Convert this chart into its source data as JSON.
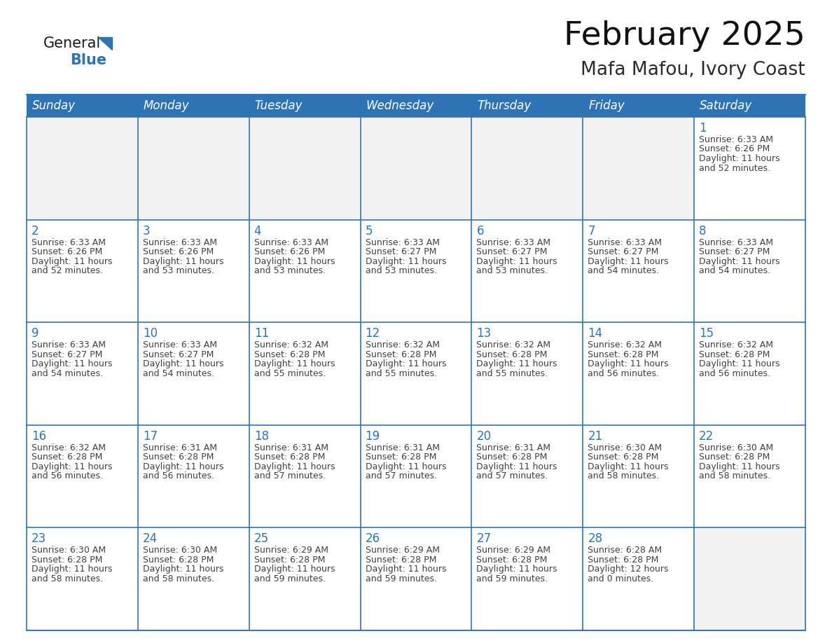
{
  "title": "February 2025",
  "subtitle": "Mafa Mafou, Ivory Coast",
  "header_bg_color": "#2E74B5",
  "header_text_color": "#FFFFFF",
  "cell_border_color": "#2E74B5",
  "day_number_color": "#2E74B5",
  "info_text_color": "#404040",
  "background_color": "#FFFFFF",
  "empty_cell_color": "#F2F2F2",
  "days_of_week": [
    "Sunday",
    "Monday",
    "Tuesday",
    "Wednesday",
    "Thursday",
    "Friday",
    "Saturday"
  ],
  "calendar_data": [
    [
      null,
      null,
      null,
      null,
      null,
      null,
      {
        "day": 1,
        "sunrise": "6:33 AM",
        "sunset": "6:26 PM",
        "daylight": "11 hours and 52 minutes."
      }
    ],
    [
      {
        "day": 2,
        "sunrise": "6:33 AM",
        "sunset": "6:26 PM",
        "daylight": "11 hours and 52 minutes."
      },
      {
        "day": 3,
        "sunrise": "6:33 AM",
        "sunset": "6:26 PM",
        "daylight": "11 hours and 53 minutes."
      },
      {
        "day": 4,
        "sunrise": "6:33 AM",
        "sunset": "6:26 PM",
        "daylight": "11 hours and 53 minutes."
      },
      {
        "day": 5,
        "sunrise": "6:33 AM",
        "sunset": "6:27 PM",
        "daylight": "11 hours and 53 minutes."
      },
      {
        "day": 6,
        "sunrise": "6:33 AM",
        "sunset": "6:27 PM",
        "daylight": "11 hours and 53 minutes."
      },
      {
        "day": 7,
        "sunrise": "6:33 AM",
        "sunset": "6:27 PM",
        "daylight": "11 hours and 54 minutes."
      },
      {
        "day": 8,
        "sunrise": "6:33 AM",
        "sunset": "6:27 PM",
        "daylight": "11 hours and 54 minutes."
      }
    ],
    [
      {
        "day": 9,
        "sunrise": "6:33 AM",
        "sunset": "6:27 PM",
        "daylight": "11 hours and 54 minutes."
      },
      {
        "day": 10,
        "sunrise": "6:33 AM",
        "sunset": "6:27 PM",
        "daylight": "11 hours and 54 minutes."
      },
      {
        "day": 11,
        "sunrise": "6:32 AM",
        "sunset": "6:28 PM",
        "daylight": "11 hours and 55 minutes."
      },
      {
        "day": 12,
        "sunrise": "6:32 AM",
        "sunset": "6:28 PM",
        "daylight": "11 hours and 55 minutes."
      },
      {
        "day": 13,
        "sunrise": "6:32 AM",
        "sunset": "6:28 PM",
        "daylight": "11 hours and 55 minutes."
      },
      {
        "day": 14,
        "sunrise": "6:32 AM",
        "sunset": "6:28 PM",
        "daylight": "11 hours and 56 minutes."
      },
      {
        "day": 15,
        "sunrise": "6:32 AM",
        "sunset": "6:28 PM",
        "daylight": "11 hours and 56 minutes."
      }
    ],
    [
      {
        "day": 16,
        "sunrise": "6:32 AM",
        "sunset": "6:28 PM",
        "daylight": "11 hours and 56 minutes."
      },
      {
        "day": 17,
        "sunrise": "6:31 AM",
        "sunset": "6:28 PM",
        "daylight": "11 hours and 56 minutes."
      },
      {
        "day": 18,
        "sunrise": "6:31 AM",
        "sunset": "6:28 PM",
        "daylight": "11 hours and 57 minutes."
      },
      {
        "day": 19,
        "sunrise": "6:31 AM",
        "sunset": "6:28 PM",
        "daylight": "11 hours and 57 minutes."
      },
      {
        "day": 20,
        "sunrise": "6:31 AM",
        "sunset": "6:28 PM",
        "daylight": "11 hours and 57 minutes."
      },
      {
        "day": 21,
        "sunrise": "6:30 AM",
        "sunset": "6:28 PM",
        "daylight": "11 hours and 58 minutes."
      },
      {
        "day": 22,
        "sunrise": "6:30 AM",
        "sunset": "6:28 PM",
        "daylight": "11 hours and 58 minutes."
      }
    ],
    [
      {
        "day": 23,
        "sunrise": "6:30 AM",
        "sunset": "6:28 PM",
        "daylight": "11 hours and 58 minutes."
      },
      {
        "day": 24,
        "sunrise": "6:30 AM",
        "sunset": "6:28 PM",
        "daylight": "11 hours and 58 minutes."
      },
      {
        "day": 25,
        "sunrise": "6:29 AM",
        "sunset": "6:28 PM",
        "daylight": "11 hours and 59 minutes."
      },
      {
        "day": 26,
        "sunrise": "6:29 AM",
        "sunset": "6:28 PM",
        "daylight": "11 hours and 59 minutes."
      },
      {
        "day": 27,
        "sunrise": "6:29 AM",
        "sunset": "6:28 PM",
        "daylight": "11 hours and 59 minutes."
      },
      {
        "day": 28,
        "sunrise": "6:28 AM",
        "sunset": "6:28 PM",
        "daylight": "12 hours and 0 minutes."
      },
      null
    ]
  ],
  "title_fontsize": 34,
  "subtitle_fontsize": 19,
  "day_header_fontsize": 12,
  "day_number_fontsize": 12,
  "info_fontsize": 9,
  "logo_text1": "General",
  "logo_text2": "Blue",
  "logo_color1": "#1a1a1a",
  "logo_color2": "#2E74B5",
  "logo_triangle_color": "#2E74B5"
}
